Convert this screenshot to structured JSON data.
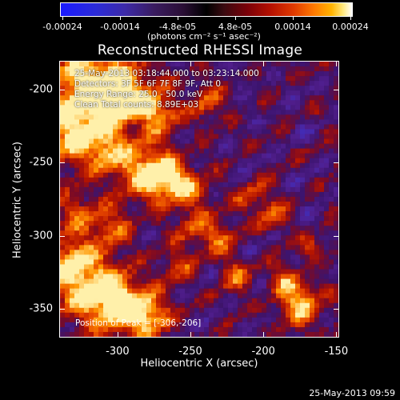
{
  "colorbar": {
    "tick_labels": [
      "-0.00024",
      "-0.00014",
      "-4.8e-05",
      "4.8e-05",
      "0.00014",
      "0.00024"
    ],
    "units": "(photons cm⁻² s⁻¹ asec⁻²)",
    "colors": [
      "#1a1aff",
      "#3c2aa8",
      "#2a0e35",
      "#000000",
      "#7a0008",
      "#e03a00",
      "#ffb300",
      "#ffffff"
    ]
  },
  "title": "Reconstructed RHESSI Image",
  "info": {
    "time_range": "25-May-2013 03:18:44.000 to 03:23:14.000",
    "detectors": "Detectors: 3F 5F 6F 7F 8F 9F, Att 0",
    "energy_range": "Energy Range: 25.0 - 50.0 keV",
    "clean": "Clean    Total counts: 8.89E+03"
  },
  "peak": "Position of Peak = [-306,-206]",
  "axes": {
    "y_title": "Heliocentric Y (arcsec)",
    "x_title": "Heliocentric X (arcsec)",
    "y_ticks": [
      "-200",
      "-250",
      "-300",
      "-350"
    ],
    "x_ticks": [
      "-300",
      "-250",
      "-200",
      "-150"
    ]
  },
  "timestamp": "25-May-2013 09:59",
  "chart_data": {
    "type": "heatmap",
    "title": "Reconstructed RHESSI Image",
    "xlabel": "Heliocentric X (arcsec)",
    "ylabel": "Heliocentric Y (arcsec)",
    "xlim": [
      -340,
      -148
    ],
    "ylim": [
      -370,
      -180
    ],
    "colorscale_range": [
      -0.00024,
      0.00024
    ],
    "peak_position": [
      -306,
      -206
    ]
  }
}
